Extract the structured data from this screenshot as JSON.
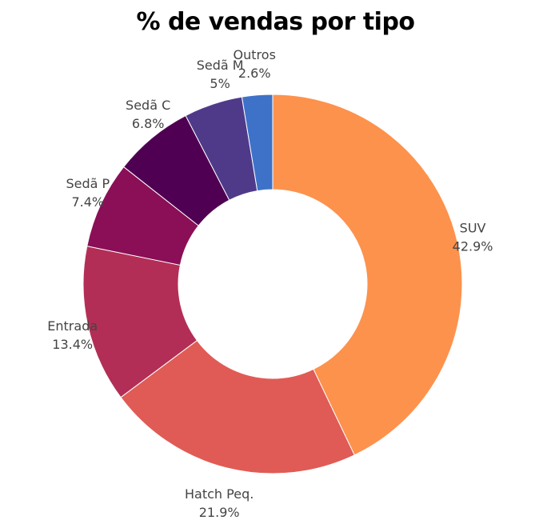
{
  "chart_data": {
    "type": "pie",
    "title": "% de vendas por tipo",
    "donut": true,
    "categories": [
      "SUV",
      "Hatch Peq.",
      "Entrada",
      "Sedã P",
      "Sedã C",
      "Sedã M",
      "Outros"
    ],
    "values": [
      42.9,
      21.9,
      13.4,
      7.4,
      6.8,
      5.0,
      2.6
    ],
    "value_labels": [
      "42.9%",
      "21.9%",
      "13.4%",
      "7.4%",
      "6.8%",
      "5%",
      "2.6%"
    ],
    "colors": [
      "#fd924d",
      "#e05b55",
      "#b32e56",
      "#8a0f57",
      "#500052",
      "#4f3a8a",
      "#3d72c8"
    ],
    "legend": "none",
    "start": "top, clockwise"
  }
}
